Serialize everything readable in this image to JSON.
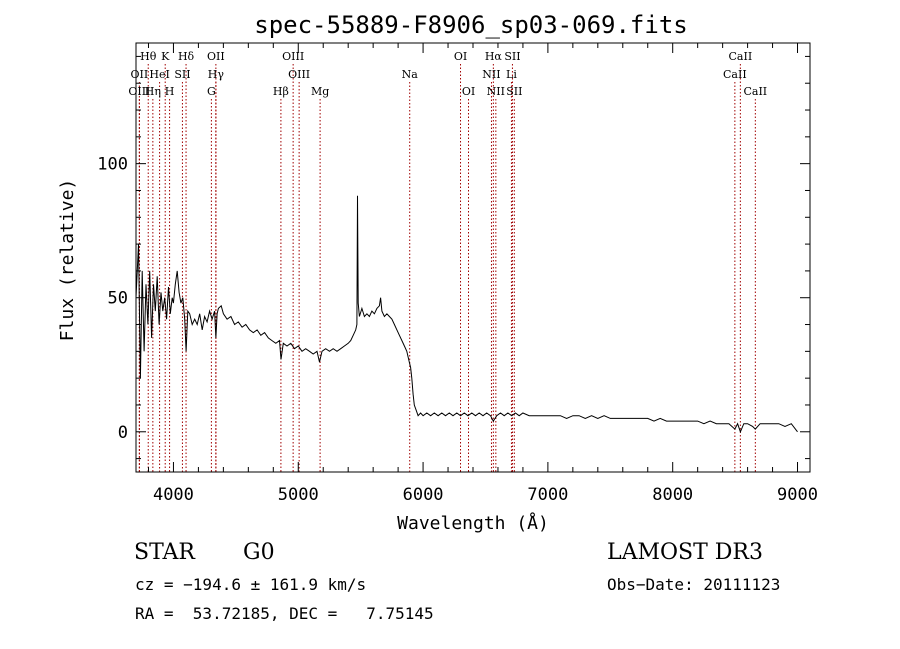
{
  "chart_data": {
    "type": "line",
    "title": "spec-55889-F8906_sp03-069.fits",
    "xlabel": "Wavelength (Å)",
    "ylabel": "Flux (relative)",
    "xlim": [
      3700,
      9100
    ],
    "ylim": [
      -15,
      145
    ],
    "xticks": [
      4000,
      5000,
      6000,
      7000,
      8000,
      9000
    ],
    "yticks": [
      0,
      50,
      100
    ],
    "series": [
      {
        "points": [
          [
            3700,
            50
          ],
          [
            3720,
            70
          ],
          [
            3735,
            20
          ],
          [
            3750,
            60
          ],
          [
            3765,
            30
          ],
          [
            3780,
            55
          ],
          [
            3795,
            40
          ],
          [
            3810,
            60
          ],
          [
            3825,
            35
          ],
          [
            3840,
            55
          ],
          [
            3855,
            45
          ],
          [
            3870,
            58
          ],
          [
            3885,
            40
          ],
          [
            3900,
            52
          ],
          [
            3915,
            45
          ],
          [
            3930,
            50
          ],
          [
            3945,
            42
          ],
          [
            3960,
            54
          ],
          [
            3975,
            44
          ],
          [
            3990,
            50
          ],
          [
            4000,
            48
          ],
          [
            4015,
            55
          ],
          [
            4030,
            60
          ],
          [
            4045,
            52
          ],
          [
            4060,
            48
          ],
          [
            4075,
            50
          ],
          [
            4090,
            42
          ],
          [
            4101,
            30
          ],
          [
            4115,
            45
          ],
          [
            4130,
            44
          ],
          [
            4150,
            40
          ],
          [
            4170,
            42
          ],
          [
            4190,
            40
          ],
          [
            4210,
            44
          ],
          [
            4230,
            38
          ],
          [
            4250,
            43
          ],
          [
            4270,
            41
          ],
          [
            4290,
            45
          ],
          [
            4310,
            42
          ],
          [
            4330,
            45
          ],
          [
            4340,
            35
          ],
          [
            4350,
            44
          ],
          [
            4360,
            46
          ],
          [
            4383,
            47
          ],
          [
            4400,
            44
          ],
          [
            4430,
            42
          ],
          [
            4460,
            43
          ],
          [
            4490,
            40
          ],
          [
            4520,
            41
          ],
          [
            4550,
            39
          ],
          [
            4580,
            40
          ],
          [
            4610,
            38
          ],
          [
            4640,
            37
          ],
          [
            4670,
            38
          ],
          [
            4700,
            36
          ],
          [
            4730,
            37
          ],
          [
            4760,
            35
          ],
          [
            4790,
            34
          ],
          [
            4820,
            33
          ],
          [
            4850,
            34
          ],
          [
            4862,
            27
          ],
          [
            4880,
            33
          ],
          [
            4910,
            32
          ],
          [
            4940,
            33
          ],
          [
            4970,
            31
          ],
          [
            5000,
            32
          ],
          [
            5030,
            30
          ],
          [
            5060,
            31
          ],
          [
            5090,
            30
          ],
          [
            5120,
            29
          ],
          [
            5150,
            30
          ],
          [
            5170,
            26
          ],
          [
            5190,
            30
          ],
          [
            5220,
            31
          ],
          [
            5250,
            30
          ],
          [
            5280,
            31
          ],
          [
            5310,
            30
          ],
          [
            5340,
            31
          ],
          [
            5370,
            32
          ],
          [
            5400,
            33
          ],
          [
            5420,
            34
          ],
          [
            5440,
            36
          ],
          [
            5460,
            38
          ],
          [
            5470,
            40
          ],
          [
            5475,
            88
          ],
          [
            5480,
            48
          ],
          [
            5490,
            43
          ],
          [
            5510,
            46
          ],
          [
            5530,
            43
          ],
          [
            5550,
            44
          ],
          [
            5570,
            43
          ],
          [
            5590,
            45
          ],
          [
            5610,
            44
          ],
          [
            5630,
            46
          ],
          [
            5650,
            47
          ],
          [
            5660,
            50
          ],
          [
            5670,
            45
          ],
          [
            5690,
            43
          ],
          [
            5710,
            44
          ],
          [
            5730,
            43
          ],
          [
            5750,
            42
          ],
          [
            5770,
            40
          ],
          [
            5790,
            38
          ],
          [
            5810,
            36
          ],
          [
            5830,
            34
          ],
          [
            5850,
            32
          ],
          [
            5870,
            30
          ],
          [
            5890,
            26
          ],
          [
            5900,
            24
          ],
          [
            5910,
            20
          ],
          [
            5920,
            14
          ],
          [
            5930,
            10
          ],
          [
            5945,
            8
          ],
          [
            5960,
            6
          ],
          [
            5980,
            7
          ],
          [
            6000,
            6
          ],
          [
            6030,
            7
          ],
          [
            6060,
            6
          ],
          [
            6090,
            7
          ],
          [
            6120,
            6
          ],
          [
            6150,
            7
          ],
          [
            6180,
            6
          ],
          [
            6210,
            7
          ],
          [
            6240,
            6
          ],
          [
            6270,
            7
          ],
          [
            6300,
            6
          ],
          [
            6330,
            7
          ],
          [
            6360,
            6
          ],
          [
            6390,
            7
          ],
          [
            6420,
            6
          ],
          [
            6450,
            7
          ],
          [
            6480,
            6
          ],
          [
            6510,
            7
          ],
          [
            6540,
            6
          ],
          [
            6563,
            4
          ],
          [
            6590,
            6
          ],
          [
            6620,
            7
          ],
          [
            6650,
            6
          ],
          [
            6680,
            7
          ],
          [
            6710,
            6
          ],
          [
            6740,
            7
          ],
          [
            6770,
            6
          ],
          [
            6800,
            7
          ],
          [
            6850,
            6
          ],
          [
            6900,
            6
          ],
          [
            6950,
            6
          ],
          [
            7000,
            6
          ],
          [
            7050,
            6
          ],
          [
            7100,
            6
          ],
          [
            7150,
            5
          ],
          [
            7200,
            6
          ],
          [
            7250,
            6
          ],
          [
            7300,
            5
          ],
          [
            7350,
            6
          ],
          [
            7400,
            5
          ],
          [
            7450,
            6
          ],
          [
            7500,
            5
          ],
          [
            7550,
            5
          ],
          [
            7600,
            5
          ],
          [
            7650,
            5
          ],
          [
            7700,
            5
          ],
          [
            7750,
            5
          ],
          [
            7800,
            5
          ],
          [
            7850,
            4
          ],
          [
            7900,
            5
          ],
          [
            7950,
            4
          ],
          [
            8000,
            4
          ],
          [
            8050,
            4
          ],
          [
            8100,
            4
          ],
          [
            8150,
            4
          ],
          [
            8200,
            4
          ],
          [
            8250,
            3
          ],
          [
            8300,
            4
          ],
          [
            8350,
            3
          ],
          [
            8400,
            3
          ],
          [
            8450,
            3
          ],
          [
            8498,
            1
          ],
          [
            8520,
            3
          ],
          [
            8542,
            0
          ],
          [
            8570,
            3
          ],
          [
            8600,
            3
          ],
          [
            8640,
            2
          ],
          [
            8662,
            1
          ],
          [
            8700,
            3
          ],
          [
            8750,
            3
          ],
          [
            8800,
            3
          ],
          [
            8850,
            3
          ],
          [
            8900,
            2
          ],
          [
            8950,
            3
          ],
          [
            9000,
            0
          ]
        ]
      }
    ],
    "spectral_lines": [
      {
        "label": "Hθ",
        "wave": 3798,
        "row": 0
      },
      {
        "label": "K",
        "wave": 3934,
        "row": 0
      },
      {
        "label": "Hδ",
        "wave": 4101,
        "row": 0
      },
      {
        "label": "OII",
        "wave": 4340,
        "row": 0
      },
      {
        "label": "OIII",
        "wave": 4959,
        "row": 0
      },
      {
        "label": "OI",
        "wave": 6300,
        "row": 0
      },
      {
        "label": "Hα",
        "wave": 6563,
        "row": 0
      },
      {
        "label": "SII",
        "wave": 6716,
        "row": 0
      },
      {
        "label": "CaII",
        "wave": 8542,
        "row": 0
      },
      {
        "label": "OII",
        "wave": 3727,
        "row": 1
      },
      {
        "label": "HeI",
        "wave": 3889,
        "row": 1
      },
      {
        "label": "SII",
        "wave": 4072,
        "row": 1
      },
      {
        "label": "Hγ",
        "wave": 4340,
        "row": 1
      },
      {
        "label": "OIII",
        "wave": 5007,
        "row": 1
      },
      {
        "label": "Na",
        "wave": 5893,
        "row": 1
      },
      {
        "label": "NII",
        "wave": 6548,
        "row": 1
      },
      {
        "label": "Li",
        "wave": 6708,
        "row": 1
      },
      {
        "label": "CaII",
        "wave": 8498,
        "row": 1
      },
      {
        "label": "OIII",
        "wave": 3727,
        "row": 2
      },
      {
        "label": "Hη",
        "wave": 3835,
        "row": 2
      },
      {
        "label": "H",
        "wave": 3969,
        "row": 2
      },
      {
        "label": "G",
        "wave": 4304,
        "row": 2
      },
      {
        "label": "Hβ",
        "wave": 4861,
        "row": 2
      },
      {
        "label": "Mg",
        "wave": 5175,
        "row": 2
      },
      {
        "label": "OI",
        "wave": 6364,
        "row": 2
      },
      {
        "label": "NII",
        "wave": 6583,
        "row": 2
      },
      {
        "label": "SII",
        "wave": 6731,
        "row": 2
      },
      {
        "label": "CaII",
        "wave": 8662,
        "row": 2
      }
    ]
  },
  "info": {
    "object_class": "STAR",
    "subclass": "G0",
    "survey": "LAMOST DR3",
    "cz": "cz = −194.6 ± 161.9 km/s",
    "obs_date": "Obs−Date: 20111123",
    "coords": "RA =  53.72185, DEC =   7.75145"
  }
}
